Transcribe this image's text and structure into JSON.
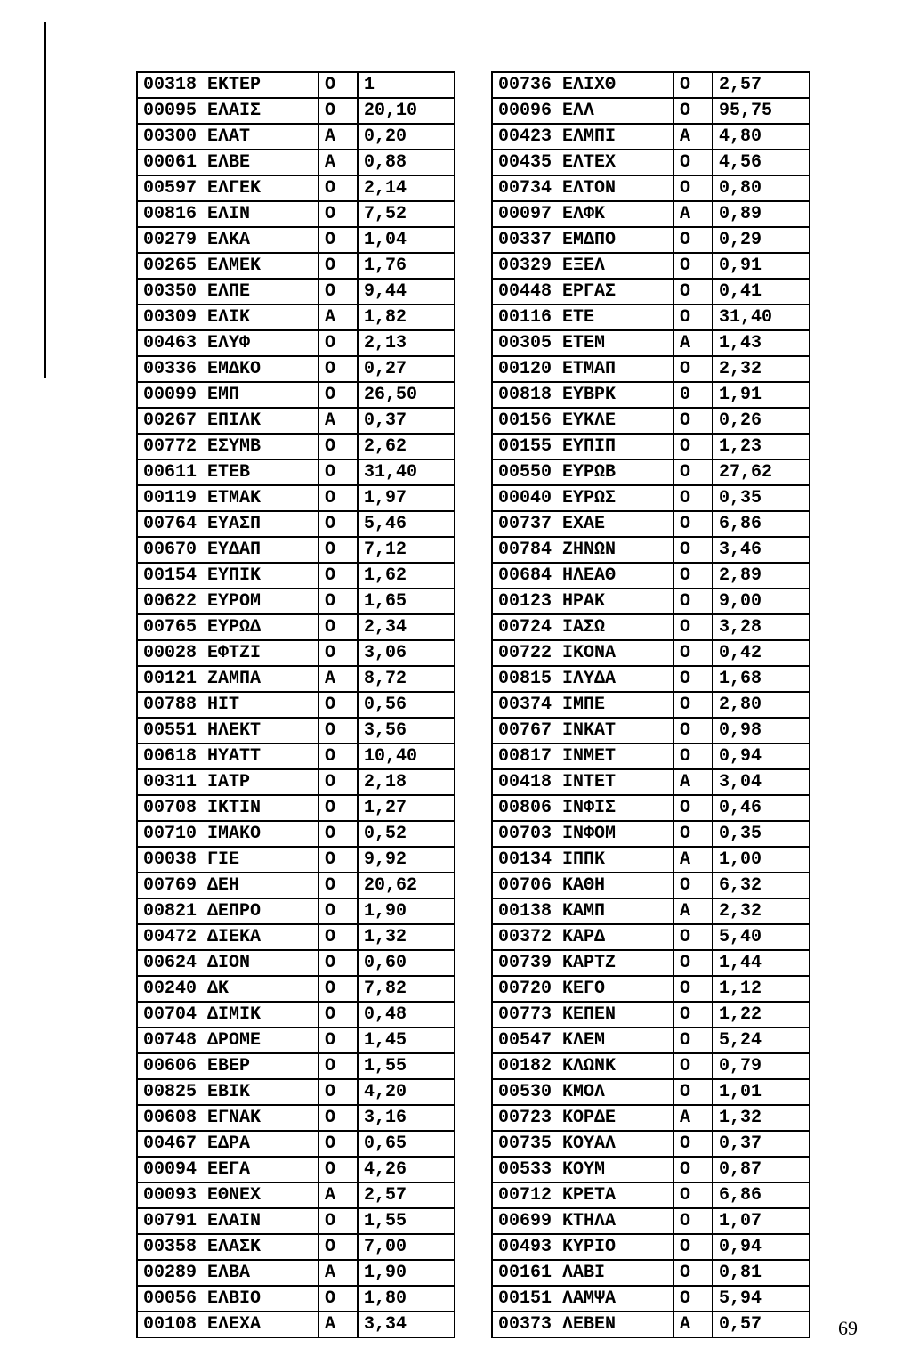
{
  "page_number": "69",
  "left_table": [
    [
      "00318",
      "ΕΚΤΕΡ",
      "Ο",
      "1"
    ],
    [
      "00095",
      "ΕΛΑΙΣ",
      "Ο",
      "20,10"
    ],
    [
      "00300",
      "ΕΛΑΤ",
      "Α",
      "0,20"
    ],
    [
      "00061",
      "ΕΛΒΕ",
      "Α",
      "0,88"
    ],
    [
      "00597",
      "ΕΛΓΕΚ",
      "Ο",
      "2,14"
    ],
    [
      "00816",
      "ΕΛΙΝ",
      "Ο",
      "7,52"
    ],
    [
      "00279",
      "ΕΛΚΑ",
      "Ο",
      "1,04"
    ],
    [
      "00265",
      "ΕΛΜΕΚ",
      "Ο",
      "1,76"
    ],
    [
      "00350",
      "ΕΛΠΕ",
      "Ο",
      "9,44"
    ],
    [
      "00309",
      "ΕΛΙΚ",
      "Α",
      "1,82"
    ],
    [
      "00463",
      "ΕΛΥΦ",
      "Ο",
      "2,13"
    ],
    [
      "00336",
      "ΕΜΔΚΟ",
      "Ο",
      "0,27"
    ],
    [
      "00099",
      "ΕΜΠ",
      "Ο",
      "26,50"
    ],
    [
      "00267",
      "ΕΠΙΛΚ",
      "Α",
      "0,37"
    ],
    [
      "00772",
      "ΕΣΥΜΒ",
      "Ο",
      "2,62"
    ],
    [
      "00611",
      "ΕΤΕΒ",
      "Ο",
      "31,40"
    ],
    [
      "00119",
      "ΕΤΜΑΚ",
      "Ο",
      "1,97"
    ],
    [
      "00764",
      "ΕΥΑΣΠ",
      "Ο",
      "5,46"
    ],
    [
      "00670",
      "ΕΥΔΑΠ",
      "Ο",
      "7,12"
    ],
    [
      "00154",
      "ΕΥΠΙΚ",
      "Ο",
      "1,62"
    ],
    [
      "00622",
      "ΕΥΡΟΜ",
      "Ο",
      "1,65"
    ],
    [
      "00765",
      "ΕΥΡΩΔ",
      "Ο",
      "2,34"
    ],
    [
      "00028",
      "ΕΦΤΖΙ",
      "Ο",
      "3,06"
    ],
    [
      "00121",
      "ΖΑΜΠΑ",
      "Α",
      "8,72"
    ],
    [
      "00788",
      "ΗΙΤ",
      "Ο",
      "0,56"
    ],
    [
      "00551",
      "ΗΛΕΚΤ",
      "Ο",
      "3,56"
    ],
    [
      "00618",
      "ΗΥΑΤΤ",
      "Ο",
      "10,40"
    ],
    [
      "00311",
      "ΙΑΤΡ",
      "Ο",
      "2,18"
    ],
    [
      "00708",
      "ΙΚΤΙΝ",
      "Ο",
      "1,27"
    ],
    [
      "00710",
      "ΙΜΑΚΟ",
      "Ο",
      "0,52"
    ],
    [
      "00038",
      "ΓΙΕ",
      "Ο",
      "9,92"
    ],
    [
      "00769",
      "ΔΕΗ",
      "Ο",
      "20,62"
    ],
    [
      "00821",
      "ΔΕΠΡΟ",
      "Ο",
      "1,90"
    ],
    [
      "00472",
      "ΔΙΕΚΑ",
      "Ο",
      "1,32"
    ],
    [
      "00624",
      "ΔΙΟΝ",
      "Ο",
      "0,60"
    ],
    [
      "00240",
      "ΔΚ",
      "Ο",
      "7,82"
    ],
    [
      "00704",
      "ΔΙΜΙΚ",
      "Ο",
      "0,48"
    ],
    [
      "00748",
      "ΔΡΟΜΕ",
      "Ο",
      "1,45"
    ],
    [
      "00606",
      "ΕΒΕΡ",
      "Ο",
      "1,55"
    ],
    [
      "00825",
      "ΕΒΙΚ",
      "Ο",
      "4,20"
    ],
    [
      "00608",
      "ΕΓΝΑΚ",
      "Ο",
      "3,16"
    ],
    [
      "00467",
      "ΕΔΡΑ",
      "Ο",
      "0,65"
    ],
    [
      "00094",
      "ΕΕΓΑ",
      "Ο",
      "4,26"
    ],
    [
      "00093",
      "ΕΘΝΕΧ",
      "Α",
      "2,57"
    ],
    [
      "00791",
      "ΕΛΑΙΝ",
      "Ο",
      "1,55"
    ],
    [
      "00358",
      "ΕΛΑΣΚ",
      "Ο",
      "7,00"
    ],
    [
      "00289",
      "ΕΛΒΑ",
      "Α",
      "1,90"
    ],
    [
      "00056",
      "ΕΛΒΙΟ",
      "Ο",
      "1,80"
    ],
    [
      "00108",
      "ΕΛΕΧΑ",
      "Α",
      "3,34"
    ]
  ],
  "right_table": [
    [
      "00736",
      "ΕΛΙΧΘ",
      "Ο",
      "2,57"
    ],
    [
      "00096",
      "ΕΛΛ",
      "Ο",
      "95,75"
    ],
    [
      "00423",
      "ΕΛΜΠΙ",
      "Α",
      "4,80"
    ],
    [
      "00435",
      "ΕΛΤΕΧ",
      "Ο",
      "4,56"
    ],
    [
      "00734",
      "ΕΛΤΟΝ",
      "Ο",
      "0,80"
    ],
    [
      "00097",
      "ΕΛΦΚ",
      "Α",
      "0,89"
    ],
    [
      "00337",
      "ΕΜΔΠΟ",
      "Ο",
      "0,29"
    ],
    [
      "00329",
      "ΕΞΕΛ",
      "Ο",
      "0,91"
    ],
    [
      "00448",
      "ΕΡΓΑΣ",
      "Ο",
      "0,41"
    ],
    [
      "00116",
      "ΕΤΕ",
      "Ο",
      "31,40"
    ],
    [
      "00305",
      "ΕΤΕΜ",
      "Α",
      "1,43"
    ],
    [
      "00120",
      "ΕΤΜΑΠ",
      "Ο",
      "2,32"
    ],
    [
      "00818",
      "ΕΥΒΡΚ",
      "0",
      "1,91"
    ],
    [
      "00156",
      "ΕΥΚΛΕ",
      "Ο",
      "0,26"
    ],
    [
      "00155",
      "ΕΥΠΙΠ",
      "Ο",
      "1,23"
    ],
    [
      "00550",
      "ΕΥΡΩΒ",
      "Ο",
      "27,62"
    ],
    [
      "00040",
      "ΕΥΡΩΣ",
      "Ο",
      "0,35"
    ],
    [
      "00737",
      "ΕΧΑΕ",
      "Ο",
      "6,86"
    ],
    [
      "00784",
      "ΖΗΝΩΝ",
      "Ο",
      "3,46"
    ],
    [
      "00684",
      "ΗΛΕΑΘ",
      "Ο",
      "2,89"
    ],
    [
      "00123",
      "ΗΡΑΚ",
      "Ο",
      "9,00"
    ],
    [
      "00724",
      "ΙΑΣΩ",
      "Ο",
      "3,28"
    ],
    [
      "00722",
      "ΙΚΟΝΑ",
      "Ο",
      "0,42"
    ],
    [
      "00815",
      "ΙΛΥΔΑ",
      "Ο",
      "1,68"
    ],
    [
      "00374",
      "ΙΜΠΕ",
      "Ο",
      "2,80"
    ],
    [
      "00767",
      "ΙΝΚΑΤ",
      "Ο",
      "0,98"
    ],
    [
      "00817",
      "ΙΝΜΕΤ",
      "Ο",
      "0,94"
    ],
    [
      "00418",
      "ΙΝΤΕΤ",
      "Α",
      "3,04"
    ],
    [
      "00806",
      "ΙΝΦΙΣ",
      "Ο",
      "0,46"
    ],
    [
      "00703",
      "ΙΝΦΟΜ",
      "Ο",
      "0,35"
    ],
    [
      "00134",
      "ΙΠΠΚ",
      "Α",
      "1,00"
    ],
    [
      "00706",
      "ΚΑΘΗ",
      "Ο",
      "6,32"
    ],
    [
      "00138",
      "ΚΑΜΠ",
      "Α",
      "2,32"
    ],
    [
      "00372",
      "ΚΑΡΔ",
      "Ο",
      "5,40"
    ],
    [
      "00739",
      "ΚΑΡΤΖ",
      "Ο",
      "1,44"
    ],
    [
      "00720",
      "ΚΕΓΟ",
      "Ο",
      "1,12"
    ],
    [
      "00773",
      "ΚΕΠΕΝ",
      "Ο",
      "1,22"
    ],
    [
      "00547",
      "ΚΛΕΜ",
      "Ο",
      "5,24"
    ],
    [
      "00182",
      "ΚΛΩΝΚ",
      "Ο",
      "0,79"
    ],
    [
      "00530",
      "ΚΜΟΛ",
      "Ο",
      "1,01"
    ],
    [
      "00723",
      "ΚΟΡΔΕ",
      "Α",
      "1,32"
    ],
    [
      "00735",
      "ΚΟΥΑΛ",
      "Ο",
      "0,37"
    ],
    [
      "00533",
      "ΚΟΥΜ",
      "Ο",
      "0,87"
    ],
    [
      "00712",
      "ΚΡΕΤΑ",
      "Ο",
      "6,86"
    ],
    [
      "00699",
      "ΚΤΗΛΑ",
      "Ο",
      "1,07"
    ],
    [
      "00493",
      "ΚΥΡΙΟ",
      "Ο",
      "0,94"
    ],
    [
      "00161",
      "ΛΑΒΙ",
      "Ο",
      "0,81"
    ],
    [
      "00151",
      "ΛΑΜΨΑ",
      "Ο",
      "5,94"
    ],
    [
      "00373",
      "ΛΕΒΕΝ",
      "Α",
      "0,57"
    ]
  ]
}
